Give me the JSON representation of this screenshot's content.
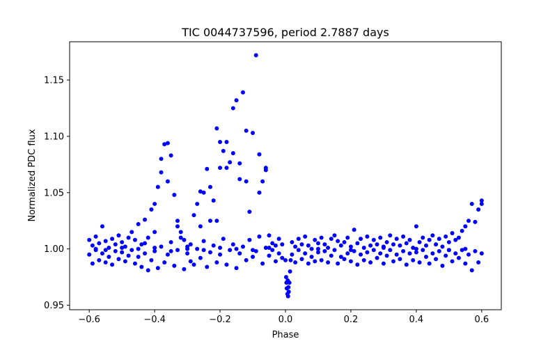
{
  "chart_data": {
    "type": "scatter",
    "title": "TIC 0044737596, period 2.7887 days",
    "xlabel": "Phase",
    "ylabel": "Normalized PDC flux",
    "xlim": [
      -0.66,
      0.66
    ],
    "ylim": [
      0.946,
      1.184
    ],
    "xticks": [
      -0.6,
      -0.4,
      -0.2,
      0.0,
      0.2,
      0.4,
      0.6
    ],
    "xtick_labels": [
      "−0.6",
      "−0.4",
      "−0.2",
      "0.0",
      "0.2",
      "0.4",
      "0.6"
    ],
    "yticks": [
      0.95,
      1.0,
      1.05,
      1.1,
      1.15
    ],
    "ytick_labels": [
      "0.95",
      "1.00",
      "1.05",
      "1.10",
      "1.15"
    ],
    "grid": false,
    "marker_color": "#0000ff",
    "series": [
      {
        "name": "flux",
        "points": [
          [
            -0.6,
            0.995
          ],
          [
            -0.6,
            1.008
          ],
          [
            -0.59,
            0.987
          ],
          [
            -0.59,
            1.003
          ],
          [
            -0.58,
            0.999
          ],
          [
            -0.58,
            1.011
          ],
          [
            -0.57,
            0.99
          ],
          [
            -0.57,
            1.005
          ],
          [
            -0.56,
            0.996
          ],
          [
            -0.56,
            1.02
          ],
          [
            -0.55,
            0.988
          ],
          [
            -0.55,
            1.007
          ],
          [
            -0.54,
            1.001
          ],
          [
            -0.54,
            0.993
          ],
          [
            -0.53,
            1.009
          ],
          [
            -0.53,
            0.986
          ],
          [
            -0.52,
            0.998
          ],
          [
            -0.52,
            1.004
          ],
          [
            -0.51,
            0.991
          ],
          [
            -0.51,
            1.012
          ],
          [
            -0.5,
            0.997
          ],
          [
            -0.5,
            1.006
          ],
          [
            -0.49,
            0.989
          ],
          [
            -0.49,
            1.002
          ],
          [
            -0.48,
            1.01
          ],
          [
            -0.48,
            0.994
          ],
          [
            -0.47,
            0.999
          ],
          [
            -0.47,
            1.015
          ],
          [
            -0.46,
            0.987
          ],
          [
            -0.46,
            1.008
          ],
          [
            -0.45,
            0.993
          ],
          [
            -0.45,
            1.022
          ],
          [
            -0.44,
            0.984
          ],
          [
            -0.44,
            1.004
          ],
          [
            -0.43,
            0.996
          ],
          [
            -0.43,
            1.026
          ],
          [
            -0.42,
            0.981
          ],
          [
            -0.42,
            1.01
          ],
          [
            -0.41,
            0.99
          ],
          [
            -0.41,
            1.035
          ],
          [
            -0.4,
            0.998
          ],
          [
            -0.4,
            1.04
          ],
          [
            -0.39,
            0.983
          ],
          [
            -0.39,
            1.055
          ],
          [
            -0.38,
            1.002
          ],
          [
            -0.38,
            1.068
          ],
          [
            -0.37,
            0.988
          ],
          [
            -0.37,
            1.093
          ],
          [
            -0.36,
            0.995
          ],
          [
            -0.36,
            1.094
          ],
          [
            -0.35,
            1.006
          ],
          [
            -0.35,
            1.083
          ],
          [
            -0.34,
            0.985
          ],
          [
            -0.34,
            1.048
          ],
          [
            -0.33,
            0.999
          ],
          [
            -0.33,
            1.025
          ],
          [
            -0.32,
            1.01
          ],
          [
            -0.32,
            1.015
          ],
          [
            -0.31,
            0.982
          ],
          [
            -0.31,
            1.008
          ],
          [
            -0.3,
            0.996
          ],
          [
            -0.3,
            1.002
          ],
          [
            -0.29,
            1.004
          ],
          [
            -0.29,
            0.989
          ],
          [
            -0.28,
            0.986
          ],
          [
            -0.28,
            1.03
          ],
          [
            -0.27,
            1.0
          ],
          [
            -0.27,
            1.04
          ],
          [
            -0.26,
            0.992
          ],
          [
            -0.26,
            1.051
          ],
          [
            -0.25,
            1.007
          ],
          [
            -0.25,
            1.05
          ],
          [
            -0.24,
            0.984
          ],
          [
            -0.24,
            1.071
          ],
          [
            -0.23,
            0.997
          ],
          [
            -0.23,
            1.055
          ],
          [
            -0.22,
            1.003
          ],
          [
            -0.22,
            1.043
          ],
          [
            -0.21,
            0.988
          ],
          [
            -0.21,
            1.107
          ],
          [
            -0.2,
            0.995
          ],
          [
            -0.2,
            1.095
          ],
          [
            -0.19,
            1.009
          ],
          [
            -0.19,
            1.087
          ],
          [
            -0.18,
            0.986
          ],
          [
            -0.18,
            1.072
          ],
          [
            -0.17,
            0.999
          ],
          [
            -0.17,
            1.077
          ],
          [
            -0.16,
            1.004
          ],
          [
            -0.16,
            1.085
          ],
          [
            -0.15,
            0.983
          ],
          [
            -0.15,
            1.132
          ],
          [
            -0.14,
            0.996
          ],
          [
            -0.14,
            1.076
          ],
          [
            -0.13,
            1.002
          ],
          [
            -0.13,
            1.139
          ],
          [
            -0.12,
            0.99
          ],
          [
            -0.12,
            1.06
          ],
          [
            -0.11,
            1.008
          ],
          [
            -0.11,
            1.033
          ],
          [
            -0.1,
            0.993
          ],
          [
            -0.1,
            1.103
          ],
          [
            -0.09,
            0.998
          ],
          [
            -0.09,
            1.172
          ],
          [
            -0.08,
            1.011
          ],
          [
            -0.08,
            1.084
          ],
          [
            -0.07,
            0.987
          ],
          [
            -0.07,
            1.06
          ],
          [
            -0.06,
            1.001
          ],
          [
            -0.06,
            1.072
          ],
          [
            -0.05,
            0.994
          ],
          [
            -0.05,
            1.012
          ],
          [
            -0.04,
            0.999
          ],
          [
            -0.04,
            1.005
          ],
          [
            -0.03,
            0.989
          ],
          [
            -0.03,
            1.003
          ],
          [
            -0.02,
            0.996
          ],
          [
            -0.02,
            1.009
          ],
          [
            -0.01,
            0.992
          ],
          [
            -0.01,
            1.004
          ],
          [
            -0.58,
            1.0
          ],
          [
            -0.55,
            0.999
          ],
          [
            -0.5,
            1.001
          ],
          [
            -0.45,
            1.0
          ],
          [
            -0.4,
            1.001
          ],
          [
            -0.35,
            0.998
          ],
          [
            -0.3,
            1.0
          ],
          [
            -0.25,
            0.999
          ],
          [
            -0.2,
            1.001
          ],
          [
            -0.15,
            1.0
          ],
          [
            -0.1,
            0.999
          ],
          [
            -0.05,
            1.001
          ],
          [
            -0.21,
            1.025
          ],
          [
            -0.16,
            1.125
          ],
          [
            -0.14,
            1.062
          ],
          [
            -0.12,
            1.105
          ],
          [
            -0.2,
            1.072
          ],
          [
            -0.18,
            1.095
          ],
          [
            -0.36,
            1.06
          ],
          [
            -0.38,
            1.08
          ],
          [
            -0.4,
            1.015
          ],
          [
            -0.43,
            1.005
          ],
          [
            -0.33,
            1.02
          ],
          [
            -0.26,
            1.02
          ],
          [
            -0.23,
            1.025
          ],
          [
            -0.08,
            1.05
          ],
          [
            -0.06,
            1.07
          ],
          [
            0.0,
            0.99
          ],
          [
            0.002,
            0.975
          ],
          [
            0.004,
            0.965
          ],
          [
            0.006,
            0.96
          ],
          [
            0.008,
            0.958
          ],
          [
            0.01,
            0.962
          ],
          [
            0.012,
            0.97
          ],
          [
            0.014,
            0.98
          ],
          [
            0.016,
            0.99
          ],
          [
            0.003,
            0.97
          ],
          [
            0.009,
            0.966
          ],
          [
            0.007,
            0.972
          ],
          [
            0.02,
            0.995
          ],
          [
            0.02,
            1.006
          ],
          [
            0.03,
            0.988
          ],
          [
            0.03,
            1.002
          ],
          [
            0.04,
            0.999
          ],
          [
            0.04,
            1.009
          ],
          [
            0.05,
            0.991
          ],
          [
            0.05,
            1.004
          ],
          [
            0.06,
            0.996
          ],
          [
            0.06,
            1.011
          ],
          [
            0.07,
            0.987
          ],
          [
            0.07,
            1.003
          ],
          [
            0.08,
            1.0
          ],
          [
            0.08,
            0.993
          ],
          [
            0.09,
            1.008
          ],
          [
            0.09,
            0.989
          ],
          [
            0.1,
            0.997
          ],
          [
            0.1,
            1.005
          ],
          [
            0.11,
            0.99
          ],
          [
            0.11,
            1.01
          ],
          [
            0.12,
            0.998
          ],
          [
            0.12,
            1.004
          ],
          [
            0.13,
            0.988
          ],
          [
            0.13,
            1.001
          ],
          [
            0.14,
            1.009
          ],
          [
            0.14,
            0.994
          ],
          [
            0.15,
            0.999
          ],
          [
            0.15,
            1.012
          ],
          [
            0.16,
            0.987
          ],
          [
            0.16,
            1.007
          ],
          [
            0.17,
            0.993
          ],
          [
            0.17,
            1.003
          ],
          [
            0.18,
            0.991
          ],
          [
            0.18,
            1.006
          ],
          [
            0.19,
            0.996
          ],
          [
            0.19,
            1.01
          ],
          [
            0.2,
            0.989
          ],
          [
            0.2,
            1.002
          ],
          [
            0.21,
            0.998
          ],
          [
            0.21,
            1.017
          ],
          [
            0.22,
            0.986
          ],
          [
            0.22,
            1.005
          ],
          [
            0.23,
            0.995
          ],
          [
            0.23,
            1.009
          ],
          [
            0.24,
            1.001
          ],
          [
            0.24,
            0.99
          ],
          [
            0.25,
            0.997
          ],
          [
            0.25,
            1.011
          ],
          [
            0.26,
            0.988
          ],
          [
            0.26,
            1.003
          ],
          [
            0.27,
            0.999
          ],
          [
            0.27,
            1.008
          ],
          [
            0.28,
            0.992
          ],
          [
            0.28,
            1.004
          ],
          [
            0.29,
            0.996
          ],
          [
            0.29,
            1.01
          ],
          [
            0.3,
            0.987
          ],
          [
            0.3,
            1.002
          ],
          [
            0.31,
            1.006
          ],
          [
            0.31,
            0.994
          ],
          [
            0.32,
            0.999
          ],
          [
            0.32,
            1.012
          ],
          [
            0.33,
            0.989
          ],
          [
            0.33,
            1.004
          ],
          [
            0.34,
            0.995
          ],
          [
            0.34,
            1.009
          ],
          [
            0.35,
            0.991
          ],
          [
            0.35,
            1.003
          ],
          [
            0.36,
            0.998
          ],
          [
            0.36,
            1.011
          ],
          [
            0.37,
            0.986
          ],
          [
            0.37,
            1.005
          ],
          [
            0.38,
            0.996
          ],
          [
            0.38,
            1.008
          ],
          [
            0.39,
            0.99
          ],
          [
            0.39,
            1.001
          ],
          [
            0.4,
            0.997
          ],
          [
            0.4,
            1.02
          ],
          [
            0.41,
            0.988
          ],
          [
            0.41,
            1.006
          ],
          [
            0.42,
            0.999
          ],
          [
            0.42,
            1.01
          ],
          [
            0.43,
            0.993
          ],
          [
            0.43,
            1.003
          ],
          [
            0.44,
            0.987
          ],
          [
            0.44,
            1.008
          ],
          [
            0.45,
            0.996
          ],
          [
            0.45,
            1.012
          ],
          [
            0.46,
            0.991
          ],
          [
            0.46,
            1.004
          ],
          [
            0.47,
            0.998
          ],
          [
            0.47,
            1.009
          ],
          [
            0.48,
            0.985
          ],
          [
            0.48,
            1.002
          ],
          [
            0.49,
            0.994
          ],
          [
            0.49,
            1.011
          ],
          [
            0.5,
            0.999
          ],
          [
            0.5,
            1.006
          ],
          [
            0.51,
            0.989
          ],
          [
            0.51,
            1.014
          ],
          [
            0.52,
            0.996
          ],
          [
            0.52,
            1.008
          ],
          [
            0.53,
            0.992
          ],
          [
            0.53,
            1.01
          ],
          [
            0.54,
            0.999
          ],
          [
            0.54,
            1.016
          ],
          [
            0.55,
            0.987
          ],
          [
            0.55,
            1.02
          ],
          [
            0.56,
            0.995
          ],
          [
            0.56,
            1.025
          ],
          [
            0.57,
            0.981
          ],
          [
            0.57,
            1.04
          ],
          [
            0.58,
            0.998
          ],
          [
            0.58,
            1.024
          ],
          [
            0.59,
            0.988
          ],
          [
            0.59,
            1.035
          ],
          [
            0.6,
            0.996
          ],
          [
            0.6,
            1.043
          ],
          [
            0.6,
            1.04
          ],
          [
            0.1,
            1.0
          ],
          [
            0.2,
            0.999
          ],
          [
            0.3,
            1.001
          ],
          [
            0.4,
            1.0
          ],
          [
            0.5,
            0.999
          ],
          [
            0.55,
            1.0
          ]
        ]
      }
    ]
  }
}
